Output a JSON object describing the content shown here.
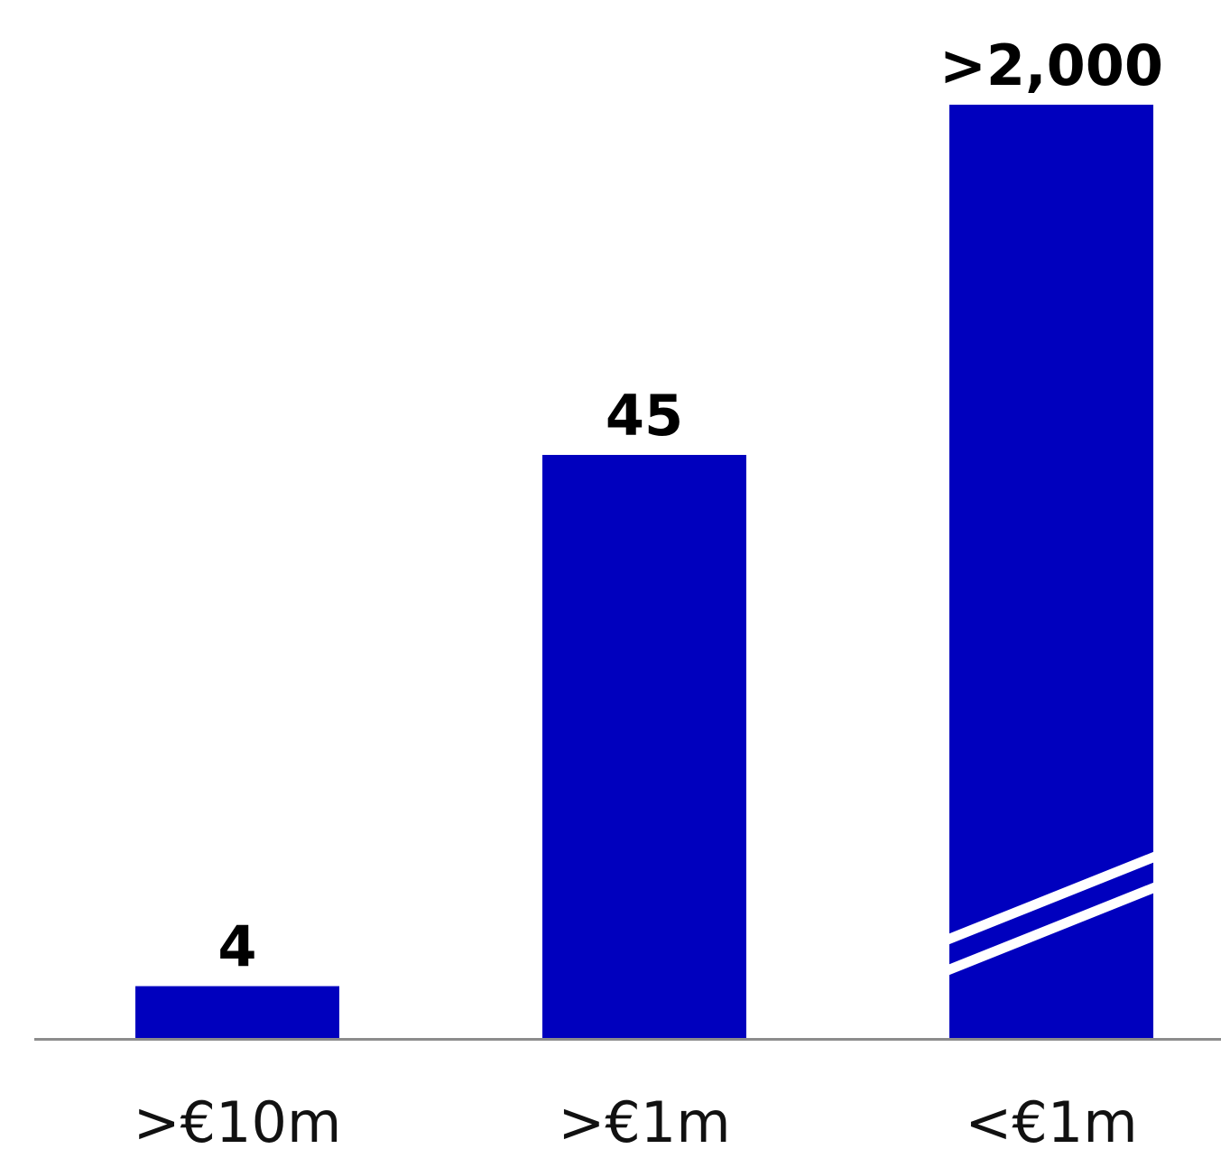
{
  "chart_data": {
    "type": "bar",
    "categories": [
      ">€10m",
      ">€1m",
      "<€1m"
    ],
    "values": [
      4,
      45,
      2000
    ],
    "data_labels": [
      "4",
      "45",
      ">2,000"
    ],
    "axis_break": [
      false,
      false,
      true
    ],
    "title": "",
    "xlabel": "",
    "ylabel": "",
    "grid": false,
    "legend": "none",
    "colors": {
      "bar": "#0000BE",
      "baseline": "#8C8C8C",
      "break_line": "#FFFFFF",
      "label": "#000000"
    }
  }
}
